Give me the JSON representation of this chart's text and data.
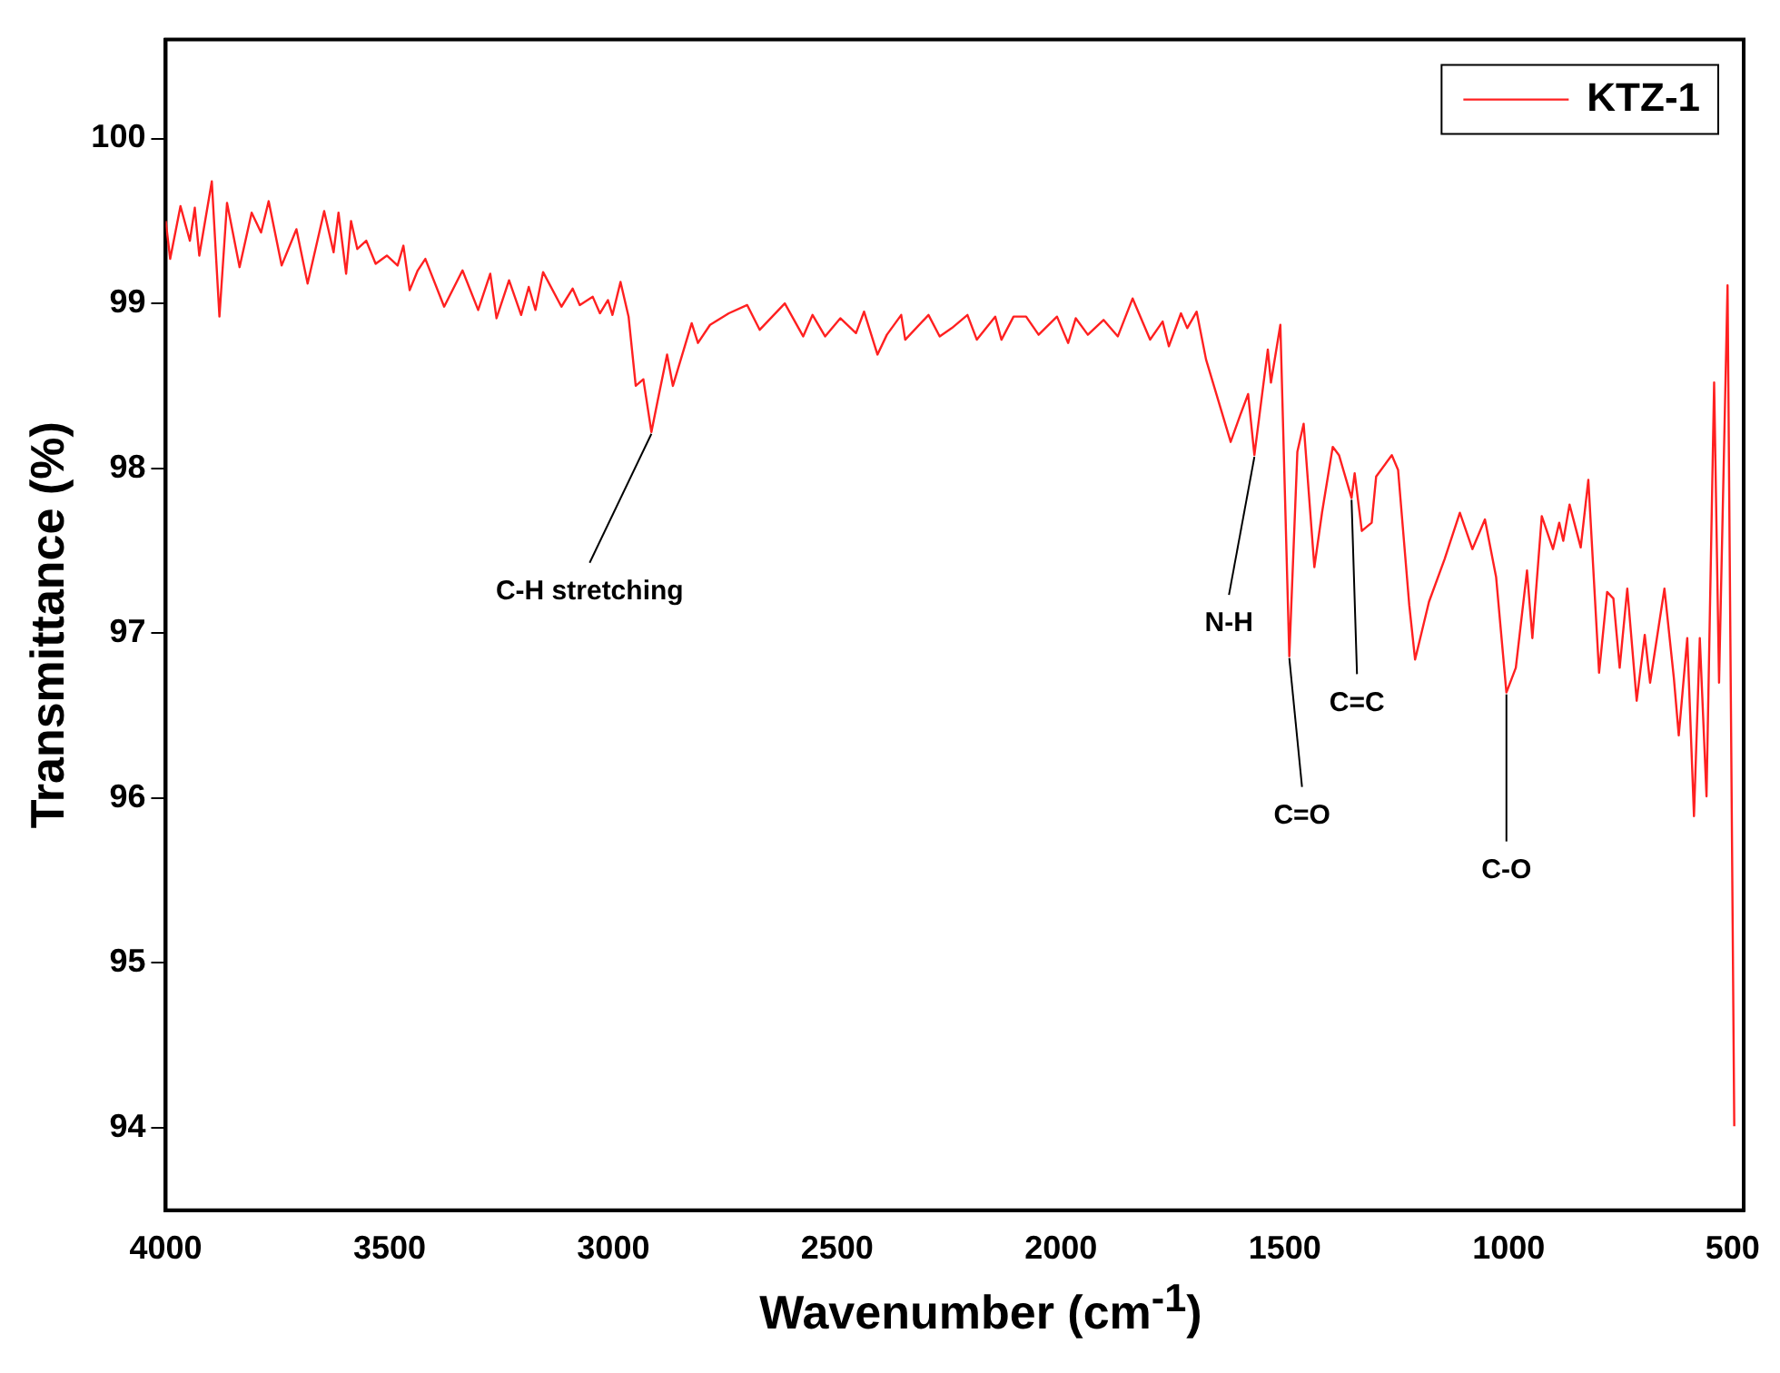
{
  "chart_data": {
    "type": "line",
    "xlabel": "Wavenumber (cm$^{-1}$)",
    "ylabel": "Transmittance (%)",
    "xlim": [
      4000,
      475
    ],
    "xticks": [
      4000,
      3500,
      3000,
      2500,
      2000,
      1500,
      1000,
      500
    ],
    "ylim": [
      93.5,
      100.6
    ],
    "yticks": [
      94,
      95,
      96,
      97,
      98,
      99,
      100
    ],
    "grid": false,
    "legend": "top right",
    "series": [
      {
        "name": "KTZ-1",
        "color": "#ff2020",
        "x": [
          4000,
          3990,
          3967,
          3946,
          3935,
          3925,
          3897,
          3880,
          3863,
          3835,
          3808,
          3787,
          3770,
          3741,
          3708,
          3683,
          3646,
          3625,
          3614,
          3597,
          3586,
          3572,
          3552,
          3531,
          3506,
          3482,
          3469,
          3455,
          3437,
          3420,
          3378,
          3337,
          3302,
          3275,
          3261,
          3233,
          3206,
          3189,
          3174,
          3157,
          3116,
          3091,
          3075,
          3046,
          3030,
          3012,
          3002,
          2984,
          2966,
          2950,
          2933,
          2915,
          2901,
          2880,
          2867,
          2825,
          2811,
          2784,
          2742,
          2701,
          2673,
          2617,
          2576,
          2555,
          2527,
          2493,
          2458,
          2440,
          2410,
          2389,
          2357,
          2348,
          2296,
          2271,
          2244,
          2209,
          2188,
          2147,
          2133,
          2106,
          2078,
          2050,
          2009,
          1984,
          1967,
          1940,
          1905,
          1873,
          1840,
          1801,
          1773,
          1759,
          1732,
          1718,
          1697,
          1676,
          1621,
          1600,
          1582,
          1568,
          1538,
          1531,
          1510,
          1490,
          1472,
          1458,
          1434,
          1417,
          1393,
          1379,
          1351,
          1344,
          1328,
          1306,
          1296,
          1261,
          1247,
          1222,
          1209,
          1178,
          1143,
          1109,
          1081,
          1053,
          1028,
          1005,
          984,
          959,
          947,
          926,
          901,
          887,
          878,
          864,
          839,
          822,
          798,
          780,
          766,
          752,
          735,
          714,
          696,
          684,
          652,
          631,
          620,
          601,
          586,
          573,
          558,
          541,
          530,
          511,
          496
        ],
        "values": [
          99.5,
          99.27,
          99.59,
          99.38,
          99.58,
          99.29,
          99.74,
          98.92,
          99.61,
          99.22,
          99.55,
          99.43,
          99.62,
          99.23,
          99.45,
          99.12,
          99.56,
          99.31,
          99.55,
          99.18,
          99.5,
          99.33,
          99.38,
          99.24,
          99.29,
          99.23,
          99.35,
          99.08,
          99.2,
          99.27,
          98.98,
          99.2,
          98.96,
          99.18,
          98.91,
          99.14,
          98.93,
          99.1,
          98.96,
          99.19,
          98.98,
          99.09,
          98.99,
          99.04,
          98.94,
          99.02,
          98.93,
          99.13,
          98.92,
          98.5,
          98.54,
          98.22,
          98.41,
          98.69,
          98.5,
          98.88,
          98.76,
          98.87,
          98.94,
          98.99,
          98.84,
          99.0,
          98.8,
          98.93,
          98.8,
          98.91,
          98.82,
          98.95,
          98.69,
          98.81,
          98.93,
          98.78,
          98.93,
          98.8,
          98.85,
          98.93,
          98.78,
          98.92,
          98.78,
          98.92,
          98.92,
          98.81,
          98.92,
          98.76,
          98.91,
          98.81,
          98.9,
          98.8,
          99.03,
          98.78,
          98.89,
          98.74,
          98.94,
          98.85,
          98.95,
          98.66,
          98.16,
          98.32,
          98.45,
          98.08,
          98.72,
          98.52,
          98.87,
          96.86,
          98.1,
          98.27,
          97.4,
          97.73,
          98.13,
          98.08,
          97.82,
          97.97,
          97.62,
          97.67,
          97.95,
          98.08,
          97.99,
          97.17,
          96.84,
          97.19,
          97.45,
          97.73,
          97.51,
          97.69,
          97.34,
          96.64,
          96.79,
          97.38,
          96.97,
          97.71,
          97.51,
          97.67,
          97.56,
          97.78,
          97.52,
          97.93,
          96.76,
          97.25,
          97.21,
          96.79,
          97.27,
          96.59,
          96.99,
          96.7,
          97.27,
          96.73,
          96.38,
          96.97,
          95.89,
          96.97,
          96.01,
          98.52,
          96.7,
          99.11,
          94.01
        ]
      }
    ],
    "annotations": [
      {
        "text": "C-H stretching",
        "x": 2915,
        "y": 98.22
      },
      {
        "text": "N-H",
        "x": 1568,
        "y": 98.08
      },
      {
        "text": "C=O",
        "x": 1490,
        "y": 96.86
      },
      {
        "text": "C=C",
        "x": 1351,
        "y": 97.82
      },
      {
        "text": "C-O",
        "x": 1005,
        "y": 96.64
      }
    ]
  }
}
